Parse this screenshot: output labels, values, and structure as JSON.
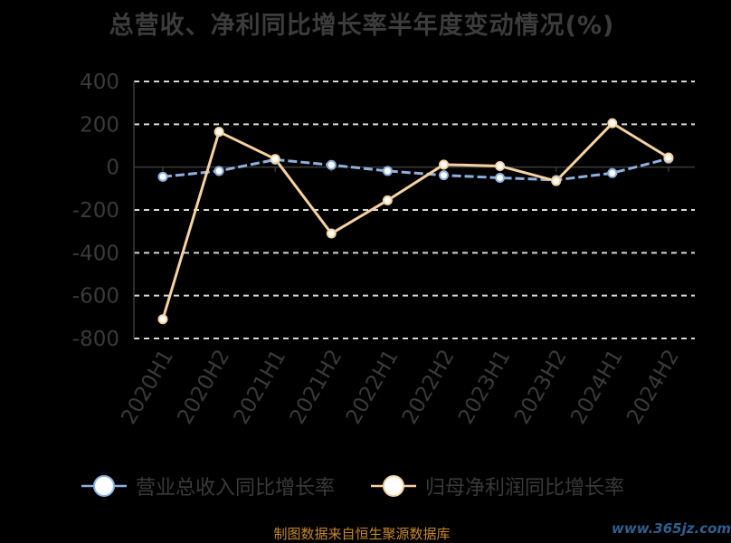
{
  "chart_data": {
    "type": "line",
    "title": "总营收、净利同比增长率半年度变动情况(%)",
    "categories": [
      "2020H1",
      "2020H2",
      "2021H1",
      "2021H2",
      "2022H1",
      "2022H2",
      "2023H1",
      "2023H2",
      "2024H1",
      "2024H2"
    ],
    "ylim": [
      -800,
      400
    ],
    "yticks": [
      400,
      200,
      0,
      -200,
      -400,
      -600,
      -800
    ],
    "grid": true,
    "legend_position": "bottom",
    "series": [
      {
        "name": "营业总收入同比增长率",
        "color": "#8fb0de",
        "values": [
          -45,
          -18,
          35,
          10,
          -18,
          -38,
          -50,
          -60,
          -28,
          40
        ]
      },
      {
        "name": "归母净利润同比增长率",
        "color": "#f5d2a0",
        "values": [
          -710,
          165,
          38,
          -310,
          -155,
          12,
          5,
          -65,
          205,
          45
        ]
      }
    ]
  },
  "source_note": "制图数据来自恒生聚源数据库",
  "watermark": "www.365jz.com"
}
